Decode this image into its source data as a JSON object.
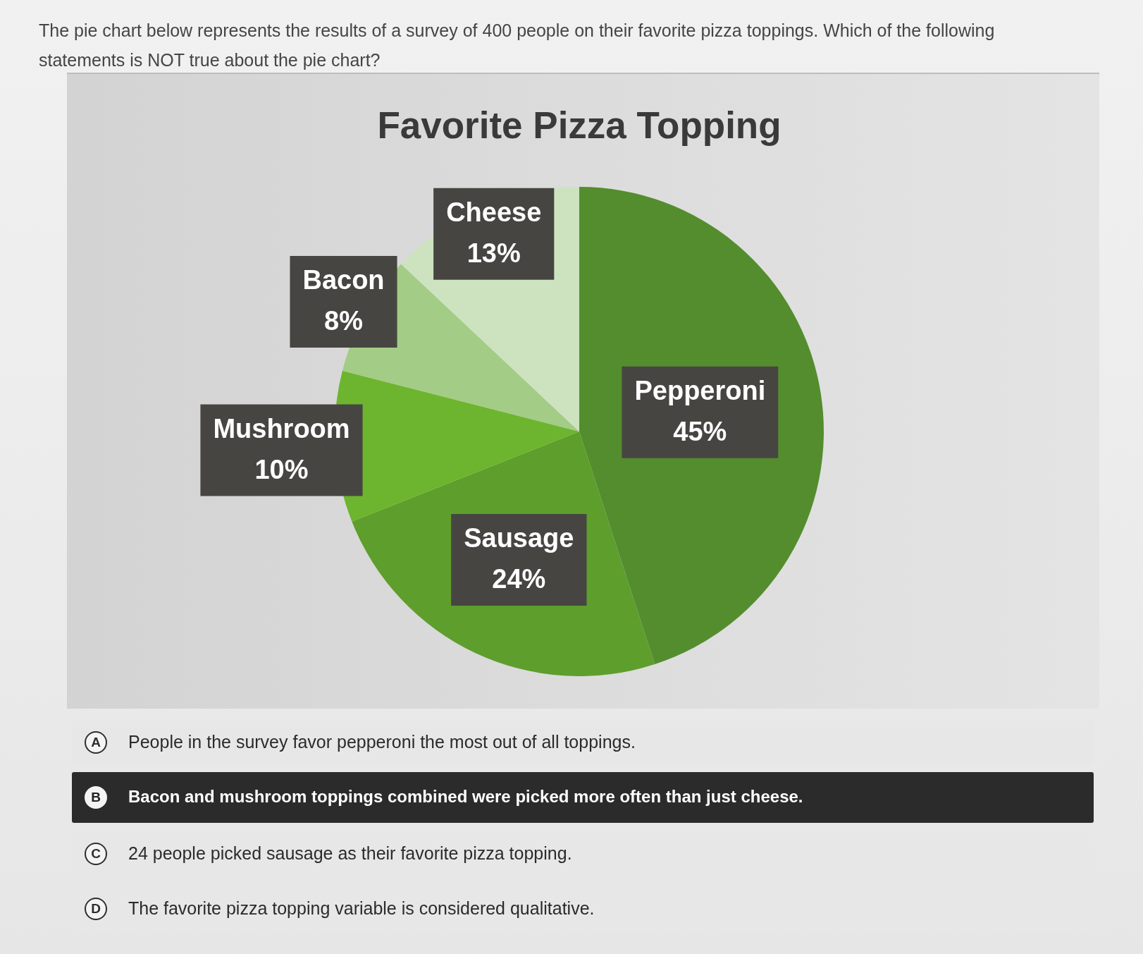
{
  "chart_data": {
    "type": "pie",
    "title": "Favorite Pizza Topping",
    "categories": [
      "Pepperoni",
      "Sausage",
      "Mushroom",
      "Bacon",
      "Cheese"
    ],
    "values": [
      45,
      24,
      10,
      8,
      13
    ],
    "colors": [
      "#548d2e",
      "#5e9e2c",
      "#6db52e",
      "#a3cc86",
      "#cde3bf"
    ],
    "value_labels": [
      "45%",
      "24%",
      "10%",
      "8%",
      "13%"
    ],
    "annotations": [
      "The pie chart below represents the results of a survey of 400 people on their favorite pizza toppings. Which of the following statements is NOT true about the pie chart?",
      "A",
      "People in the survey favor pepperoni the most out of all toppings.",
      "B",
      "Bacon and mushroom toppings combined were picked more often than just cheese.",
      "C",
      "24 people picked sausage as their favorite pizza topping.",
      "D",
      "The favorite pizza topping variable is considered qualitative."
    ]
  }
}
